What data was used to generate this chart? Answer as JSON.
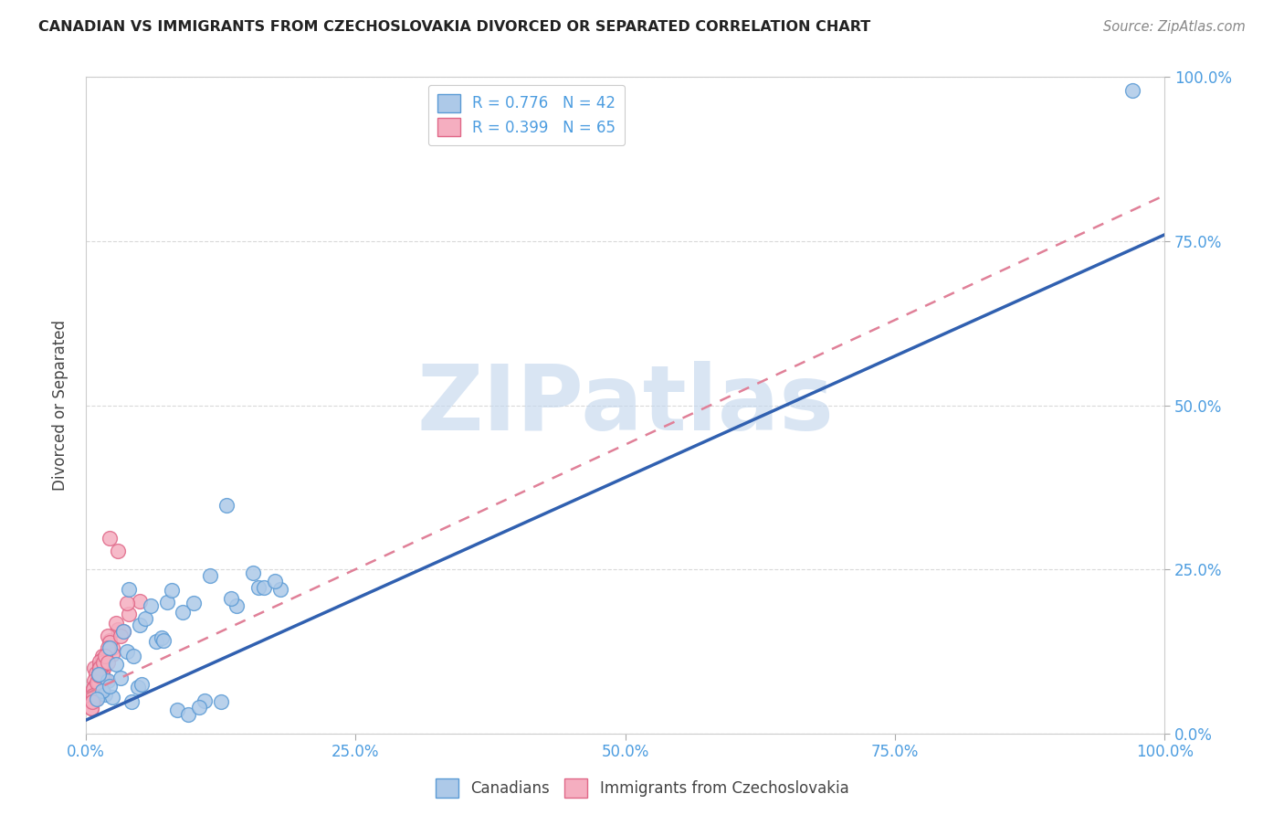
{
  "title": "CANADIAN VS IMMIGRANTS FROM CZECHOSLOVAKIA DIVORCED OR SEPARATED CORRELATION CHART",
  "source": "Source: ZipAtlas.com",
  "ylabel": "Divorced or Separated",
  "xlim": [
    0,
    1
  ],
  "ylim": [
    0,
    1
  ],
  "xticks": [
    0.0,
    0.25,
    0.5,
    0.75,
    1.0
  ],
  "yticks": [
    0.0,
    0.25,
    0.5,
    0.75,
    1.0
  ],
  "xticklabels": [
    "0.0%",
    "25.0%",
    "50.0%",
    "75.0%",
    "100.0%"
  ],
  "yticklabels": [
    "0.0%",
    "25.0%",
    "50.0%",
    "75.0%",
    "100.0%"
  ],
  "canadian_color": "#adc9e8",
  "immigrant_color": "#f5aec0",
  "canadian_edge": "#5b9bd5",
  "immigrant_edge": "#e06888",
  "trend_blue": "#3060b0",
  "trend_pink": "#e08098",
  "R_canadian": 0.776,
  "N_canadian": 42,
  "R_immigrant": 0.399,
  "N_immigrant": 65,
  "watermark_text": "ZIPatlas",
  "watermark_color": "#c5d8ee",
  "blue_trend_x": [
    0.0,
    1.0
  ],
  "blue_trend_y": [
    0.02,
    0.76
  ],
  "pink_trend_x": [
    0.0,
    1.0
  ],
  "pink_trend_y": [
    0.06,
    0.82
  ],
  "canadians_x": [
    0.97,
    0.02,
    0.04,
    0.05,
    0.028,
    0.075,
    0.038,
    0.055,
    0.065,
    0.022,
    0.012,
    0.032,
    0.018,
    0.042,
    0.085,
    0.095,
    0.11,
    0.06,
    0.048,
    0.13,
    0.155,
    0.08,
    0.025,
    0.035,
    0.015,
    0.18,
    0.07,
    0.09,
    0.052,
    0.115,
    0.01,
    0.14,
    0.072,
    0.044,
    0.1,
    0.16,
    0.125,
    0.105,
    0.135,
    0.022,
    0.165,
    0.175
  ],
  "canadians_y": [
    0.98,
    0.08,
    0.22,
    0.165,
    0.105,
    0.2,
    0.125,
    0.175,
    0.14,
    0.13,
    0.09,
    0.085,
    0.06,
    0.048,
    0.035,
    0.028,
    0.05,
    0.195,
    0.07,
    0.348,
    0.245,
    0.218,
    0.055,
    0.155,
    0.065,
    0.22,
    0.145,
    0.185,
    0.075,
    0.24,
    0.052,
    0.195,
    0.142,
    0.118,
    0.198,
    0.222,
    0.048,
    0.04,
    0.205,
    0.072,
    0.222,
    0.232
  ],
  "immigrants_x": [
    0.008,
    0.01,
    0.015,
    0.018,
    0.01,
    0.022,
    0.009,
    0.011,
    0.016,
    0.014,
    0.025,
    0.008,
    0.03,
    0.007,
    0.009,
    0.013,
    0.007,
    0.02,
    0.012,
    0.006,
    0.015,
    0.008,
    0.009,
    0.014,
    0.007,
    0.022,
    0.016,
    0.008,
    0.028,
    0.013,
    0.006,
    0.007,
    0.014,
    0.04,
    0.05,
    0.035,
    0.008,
    0.013,
    0.007,
    0.032,
    0.025,
    0.006,
    0.015,
    0.007,
    0.008,
    0.014,
    0.006,
    0.02,
    0.007,
    0.007,
    0.013,
    0.03,
    0.022,
    0.012,
    0.016,
    0.006,
    0.007,
    0.018,
    0.005,
    0.01,
    0.038,
    0.005,
    0.012,
    0.006,
    0.02
  ],
  "immigrants_y": [
    0.1,
    0.072,
    0.118,
    0.082,
    0.06,
    0.142,
    0.052,
    0.09,
    0.108,
    0.082,
    0.13,
    0.07,
    0.158,
    0.058,
    0.092,
    0.102,
    0.068,
    0.148,
    0.09,
    0.062,
    0.112,
    0.08,
    0.072,
    0.09,
    0.052,
    0.138,
    0.098,
    0.06,
    0.168,
    0.092,
    0.048,
    0.06,
    0.102,
    0.182,
    0.202,
    0.155,
    0.068,
    0.11,
    0.058,
    0.148,
    0.12,
    0.048,
    0.088,
    0.058,
    0.07,
    0.1,
    0.05,
    0.13,
    0.058,
    0.068,
    0.1,
    0.278,
    0.298,
    0.078,
    0.108,
    0.048,
    0.058,
    0.118,
    0.038,
    0.078,
    0.198,
    0.038,
    0.088,
    0.048,
    0.108
  ],
  "background_color": "#ffffff",
  "grid_color": "#d0d0d0",
  "tick_color": "#4d9de0",
  "axis_label_color": "#444444",
  "title_color": "#222222",
  "legend_text_color": "#4d9de0"
}
